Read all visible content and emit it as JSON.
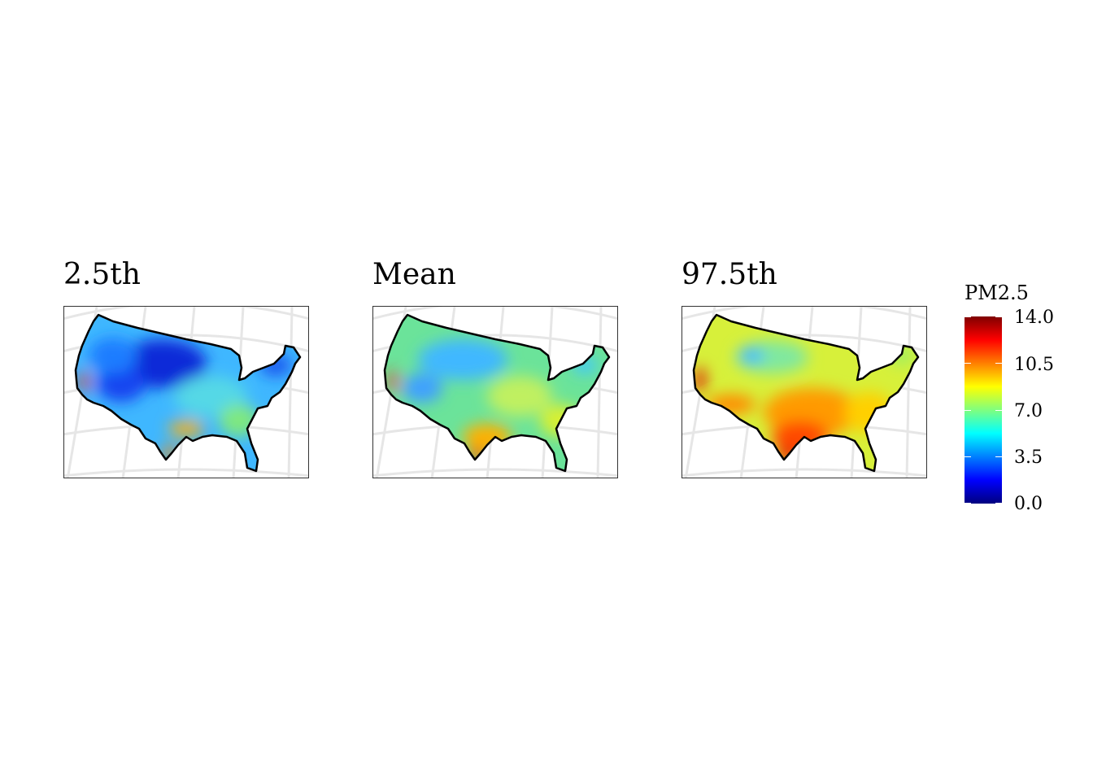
{
  "panels": [
    {
      "title": "2.5th",
      "level": "low"
    },
    {
      "title": "Mean",
      "level": "mid"
    },
    {
      "title": "97.5th",
      "level": "high"
    }
  ],
  "legend": {
    "title": "PM2.5",
    "ticks": [
      "14.0",
      "10.5",
      "7.0",
      "3.5",
      "0.0"
    ],
    "min": 0.0,
    "max": 14.0,
    "colormap": [
      "#00007f",
      "#0000ff",
      "#007fff",
      "#00ffff",
      "#7fff7f",
      "#ffff00",
      "#ff7f00",
      "#ff0000",
      "#7f0000"
    ]
  }
}
